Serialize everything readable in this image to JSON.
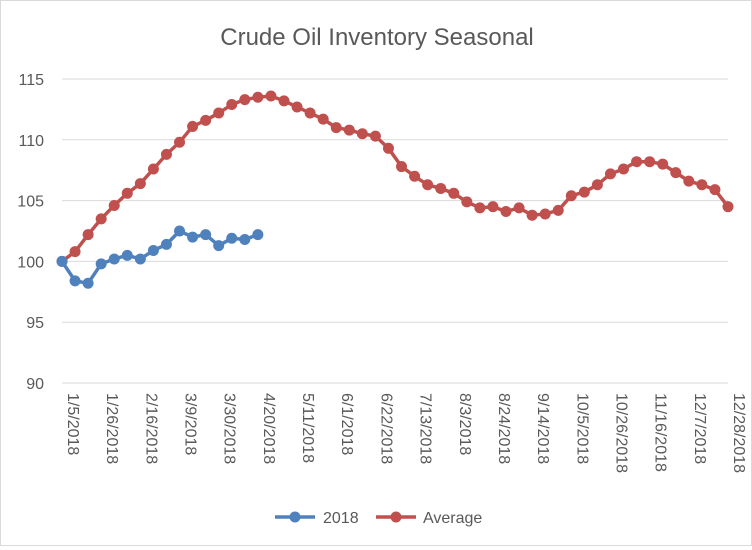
{
  "chart_data": {
    "type": "line",
    "title": "Crude Oil Inventory Seasonal",
    "xlabel": "",
    "ylabel": "",
    "ylim": [
      90,
      115
    ],
    "yticks": [
      90,
      95,
      100,
      105,
      110,
      115
    ],
    "grid": true,
    "legend_position": "bottom",
    "x_tick_labels": [
      "1/5/2018",
      "1/26/2018",
      "2/16/2018",
      "3/9/2018",
      "3/30/2018",
      "4/20/2018",
      "5/11/2018",
      "6/1/2018",
      "6/22/2018",
      "7/13/2018",
      "8/3/2018",
      "8/24/2018",
      "9/14/2018",
      "10/5/2018",
      "10/26/2018",
      "11/16/2018",
      "12/7/2018",
      "12/28/2018"
    ],
    "series": [
      {
        "name": "2018",
        "color": "#4f81bd",
        "values": [
          100.0,
          98.4,
          98.2,
          99.8,
          100.2,
          100.5,
          100.2,
          100.9,
          101.4,
          102.5,
          102.0,
          102.2,
          101.3,
          101.9,
          101.8,
          102.2
        ]
      },
      {
        "name": "Average",
        "color": "#c0504d",
        "values": [
          100.0,
          100.8,
          102.2,
          103.5,
          104.6,
          105.6,
          106.4,
          107.6,
          108.8,
          109.8,
          111.1,
          111.6,
          112.2,
          112.9,
          113.3,
          113.5,
          113.6,
          113.2,
          112.7,
          112.2,
          111.7,
          111.0,
          110.8,
          110.5,
          110.3,
          109.3,
          107.8,
          107.0,
          106.3,
          106.0,
          105.6,
          104.9,
          104.4,
          104.5,
          104.1,
          104.4,
          103.8,
          103.9,
          104.2,
          105.4,
          105.7,
          106.3,
          107.2,
          107.6,
          108.2,
          108.2,
          108.0,
          107.3,
          106.6,
          106.3,
          105.9,
          104.5
        ]
      }
    ]
  }
}
